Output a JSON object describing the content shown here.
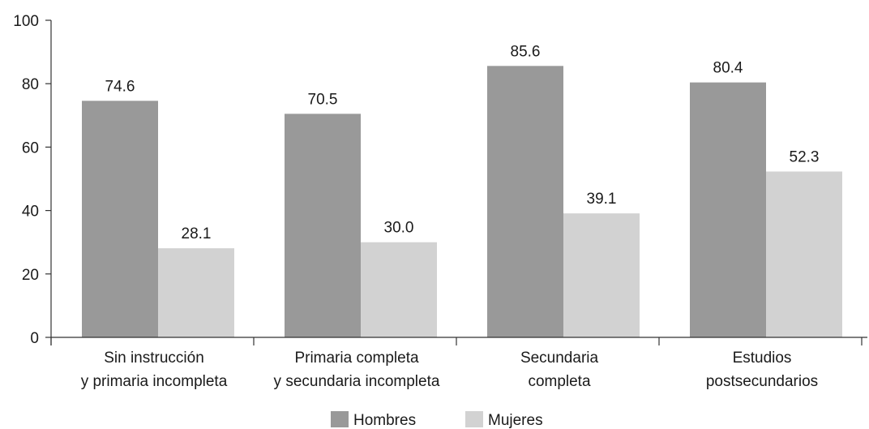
{
  "chart_data": {
    "type": "bar",
    "categories": [
      [
        "Sin instrucción",
        "y primaria incompleta"
      ],
      [
        "Primaria completa",
        "y secundaria incompleta"
      ],
      [
        "Secundaria",
        "completa"
      ],
      [
        "Estudios",
        "postsecundarios"
      ]
    ],
    "series": [
      {
        "name": "Hombres",
        "values": [
          74.6,
          70.5,
          85.6,
          80.4
        ],
        "labels": [
          "74.6",
          "70.5",
          "85.6",
          "80.4"
        ],
        "color": "#999999"
      },
      {
        "name": "Mujeres",
        "values": [
          28.1,
          30.0,
          39.1,
          52.3
        ],
        "labels": [
          "28.1",
          "30.0",
          "39.1",
          "52.3"
        ],
        "color": "#d2d2d2"
      }
    ],
    "ylim": [
      0,
      100
    ],
    "yticks": [
      0,
      20,
      40,
      60,
      80,
      100
    ],
    "ytick_labels": [
      "0",
      "20",
      "40",
      "60",
      "80",
      "100"
    ],
    "title": "",
    "xlabel": "",
    "ylabel": "",
    "grid": false,
    "legend_position": "bottom-center",
    "axis_color": "#333333"
  }
}
